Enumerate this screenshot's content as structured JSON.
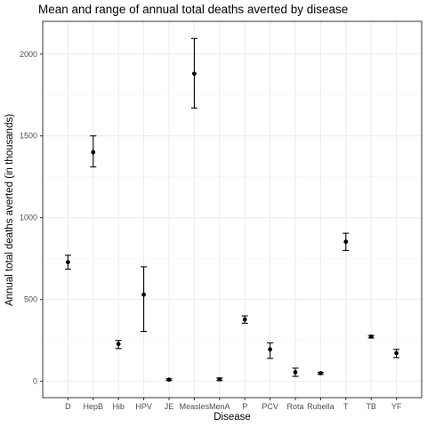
{
  "chart_data": {
    "type": "scatter",
    "title": "Mean and range of annual total deaths averted by disease",
    "xlabel": "Disease",
    "ylabel": "Annual total deaths averted (in thousands)",
    "categories": [
      "D",
      "HepB",
      "Hib",
      "HPV",
      "JE",
      "Measles",
      "MenA",
      "P",
      "PCV",
      "Rota",
      "Rubella",
      "T",
      "TB",
      "YF"
    ],
    "mean": [
      728,
      1400,
      228,
      530,
      10,
      1880,
      12,
      378,
      195,
      55,
      50,
      853,
      273,
      172
    ],
    "min": [
      685,
      1310,
      200,
      305,
      5,
      1670,
      5,
      355,
      140,
      30,
      42,
      800,
      265,
      145
    ],
    "max": [
      770,
      1500,
      250,
      700,
      15,
      2095,
      20,
      400,
      235,
      80,
      55,
      905,
      280,
      195
    ],
    "yticks": [
      0,
      500,
      1000,
      1500,
      2000
    ],
    "ylim": [
      -100,
      2200
    ],
    "grid": true,
    "legend": "none",
    "colors": {
      "point": "#000000",
      "grid_major": "#ebebeb",
      "grid_minor": "#f5f5f5",
      "panel_border": "#333333",
      "tick_text": "#4d4d4d"
    }
  }
}
